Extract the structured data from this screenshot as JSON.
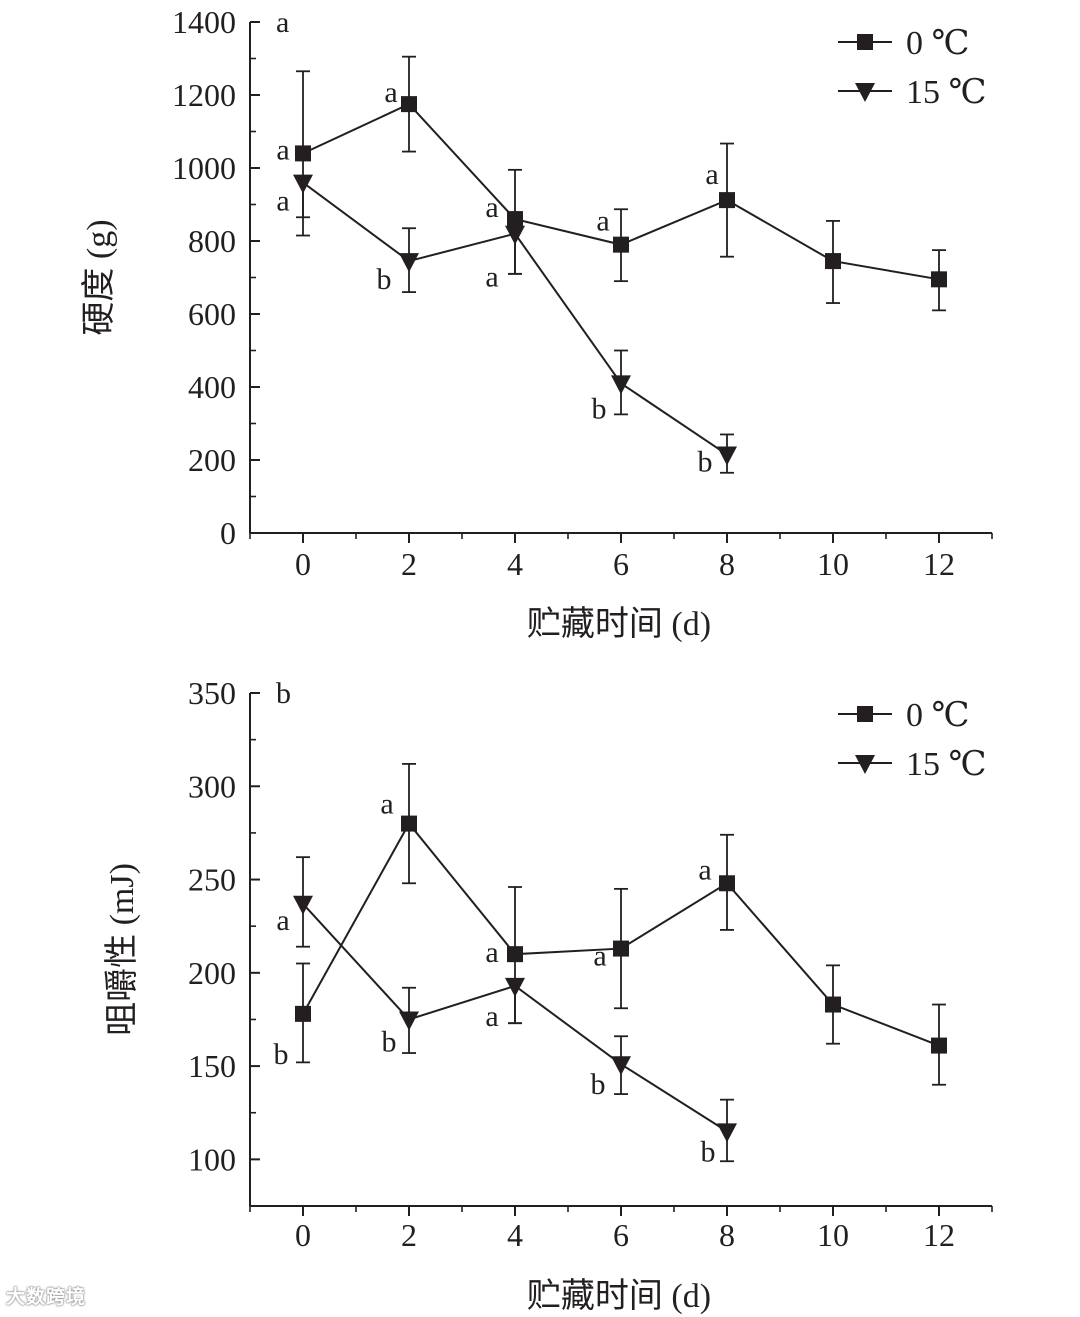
{
  "watermark": "大数跨境",
  "chart_data": [
    {
      "type": "line",
      "panel_label": "a",
      "title": "",
      "xlabel": "贮藏时间 (d)",
      "ylabel": "硬度 (g)",
      "xlim": [
        -1,
        13
      ],
      "ylim": [
        0,
        1400
      ],
      "xticks": [
        0,
        2,
        4,
        6,
        8,
        10,
        12
      ],
      "yticks": [
        0,
        200,
        400,
        600,
        800,
        1000,
        1200,
        1400
      ],
      "yminor": [
        100,
        300,
        500,
        700,
        900,
        1100,
        1300
      ],
      "legend_position": "top-right",
      "series": [
        {
          "name": "0 ℃",
          "marker": "square",
          "x": [
            0,
            2,
            4,
            6,
            8,
            10,
            12
          ],
          "values": [
            1040,
            1175,
            860,
            790,
            912,
            745,
            695
          ],
          "err_low": [
            175,
            130,
            150,
            100,
            155,
            115,
            85
          ],
          "err_high": [
            225,
            130,
            135,
            97,
            155,
            110,
            80
          ],
          "letters": [
            "a",
            "a",
            "a",
            "a",
            "a",
            null,
            null
          ]
        },
        {
          "name": "15 ℃",
          "marker": "triangle-down",
          "x": [
            0,
            2,
            4,
            6,
            8
          ],
          "values": [
            960,
            745,
            820,
            410,
            215
          ],
          "err_low": [
            145,
            85,
            110,
            85,
            50
          ],
          "err_high": [
            0,
            90,
            0,
            90,
            55
          ],
          "letters": [
            "a",
            "b",
            "a",
            "b",
            "b"
          ]
        }
      ]
    },
    {
      "type": "line",
      "panel_label": "b",
      "title": "",
      "xlabel": "贮藏时间 (d)",
      "ylabel": "咀嚼性 (mJ)",
      "xlim": [
        -1,
        13
      ],
      "ylim": [
        75,
        350
      ],
      "xticks": [
        0,
        2,
        4,
        6,
        8,
        10,
        12
      ],
      "yticks": [
        100,
        150,
        200,
        250,
        300,
        350
      ],
      "yminor": [
        125,
        175,
        225,
        275,
        325
      ],
      "legend_position": "top-right",
      "series": [
        {
          "name": "0 ℃",
          "marker": "square",
          "x": [
            0,
            2,
            4,
            6,
            8,
            10,
            12
          ],
          "values": [
            178,
            280,
            210,
            213,
            248,
            183,
            161
          ],
          "err_low": [
            26,
            32,
            37,
            32,
            25,
            21,
            21
          ],
          "err_high": [
            27,
            32,
            36,
            32,
            26,
            21,
            22
          ],
          "letters": [
            "b",
            "a",
            "a",
            "a",
            "a",
            null,
            null
          ]
        },
        {
          "name": "15 ℃",
          "marker": "triangle-down",
          "x": [
            0,
            2,
            4,
            6,
            8
          ],
          "values": [
            237,
            175,
            193,
            151,
            115
          ],
          "err_low": [
            23,
            18,
            20,
            16,
            16
          ],
          "err_high": [
            25,
            17,
            0,
            15,
            17
          ],
          "letters": [
            "a",
            "b",
            "a",
            "b",
            "b"
          ]
        }
      ]
    }
  ]
}
